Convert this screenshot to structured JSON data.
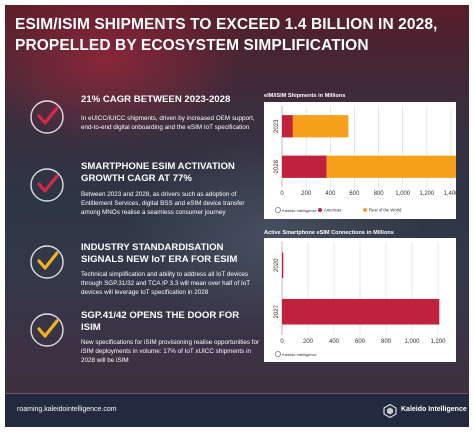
{
  "title": "ESIM/ISIM SHIPMENTS TO EXCEED 1.4 BILLION IN 2028, PROPELLED BY ECOSYSTEM SIMPLIFICATION",
  "colors": {
    "americas": "#c0213d",
    "rest": "#f7a11a",
    "check_red": "#d6294a",
    "check_yellow": "#f0b323"
  },
  "items": [
    {
      "icon": "checkmark-red-icon",
      "heading": "21% CAGR BETWEEN 2023-2028",
      "body": "In eUICC/iUICC shipments, driven by increased OEM support, end-to-end digital onboarding and the eSIM IoT specification"
    },
    {
      "icon": "checkmark-red-icon",
      "heading": "SMARTPHONE ESIM ACTIVATION GROWTH CAGR AT 77%",
      "body": "Between 2023 and 2028, as drivers such as adoption of Entitlement Services, digital BSS and eSIM device transfer among MNOs realise a seamless consumer journey"
    },
    {
      "icon": "checkmark-yellow-icon",
      "heading": "INDUSTRY STANDARDISATION SIGNALS NEW IoT ERA FOR ESIM",
      "body": "Technical simplification and ability to address all IoT devices through SGP.31/32 and TCA IP 3.3  will mean over half of IoT devices will leverage IoT specification in 2028"
    },
    {
      "icon": "checkmark-yellow-icon",
      "heading": "SGP.41/42 OPENS THE DOOR FOR ISIM",
      "body": "New specifications for iSIM provisioning realise opportunities for iSIM deployments in volume: 17% of IoT xUICC shipments in 2028 will be iSIM"
    }
  ],
  "chart_data": [
    {
      "type": "bar",
      "orientation": "horizontal",
      "stacked": true,
      "title": "eIM/iSIM Shipments in Millions",
      "categories": [
        "2023",
        "2028"
      ],
      "series": [
        {
          "name": "Americas",
          "values": [
            90,
            370
          ]
        },
        {
          "name": "Rest of the World",
          "values": [
            460,
            1080
          ]
        }
      ],
      "xticks": [
        "0",
        "200",
        "400",
        "600",
        "800",
        "1,000",
        "1,200",
        "1,400"
      ],
      "xlim": [
        0,
        1400
      ],
      "grid": true,
      "legend": "bottom",
      "source": "Kaleido Intelligence"
    },
    {
      "type": "bar",
      "orientation": "horizontal",
      "title": "Active Smartphone eSIM Connections in Millions",
      "categories": [
        "2020",
        "2027"
      ],
      "series": [
        {
          "values": [
            10,
            1210
          ]
        }
      ],
      "xticks": [
        "0",
        "200",
        "400",
        "600",
        "800",
        "1,000",
        "1,200"
      ],
      "xlim": [
        0,
        1300
      ],
      "grid": true,
      "source": "Kaleido Intelligence"
    }
  ],
  "footer": {
    "url": "roaming.kaleidointelligence.com",
    "brand": "Kaleido Intelligence"
  }
}
